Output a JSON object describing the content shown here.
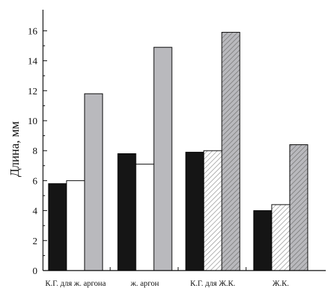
{
  "chart_data": {
    "type": "bar",
    "categories": [
      "К.Г. для ж. аргона",
      "ж. аргон",
      "К.Г. для Ж.К.",
      "Ж.К."
    ],
    "series": [
      {
        "values": [
          5.8,
          7.8,
          7.9,
          4.0
        ],
        "fill": "solid",
        "color": "#151515"
      },
      {
        "values": [
          6.0,
          7.1,
          8.0,
          4.4
        ],
        "fill": "hatch",
        "color": "#ffffff",
        "hatch_color": "#9a9a9a"
      },
      {
        "values": [
          11.8,
          14.9,
          15.9,
          8.4
        ],
        "fill": "hatch",
        "color": "#b9b9bd",
        "hatch_color": "#777777"
      }
    ],
    "hatched_categories": [
      2,
      3
    ],
    "title": "",
    "xlabel": "",
    "ylabel": "Длина, мм",
    "ylim": [
      0,
      17
    ],
    "yticks": [
      0,
      2,
      4,
      6,
      8,
      10,
      12,
      14,
      16
    ],
    "grid": false,
    "legend": "none"
  }
}
